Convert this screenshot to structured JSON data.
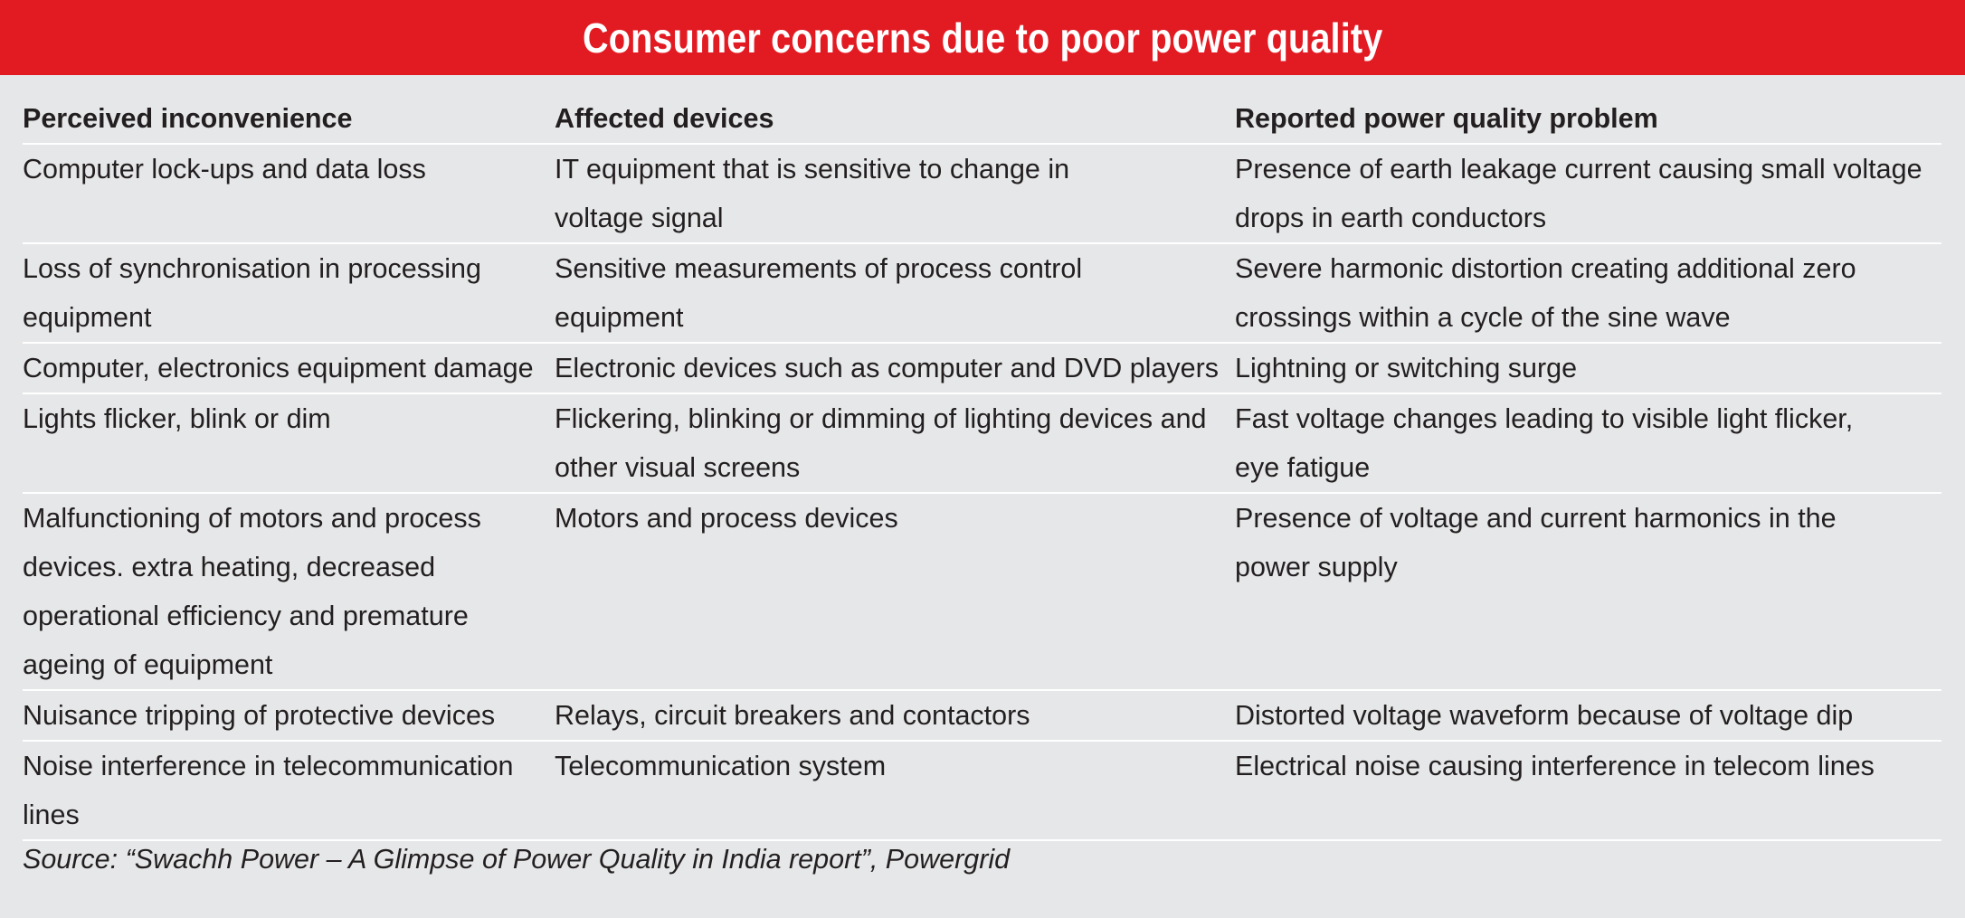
{
  "title": "Consumer concerns due to poor power quality",
  "columns": [
    "Perceived inconvenience",
    "Affected devices",
    "Reported power quality problem"
  ],
  "rows": [
    {
      "inconvenience": "Computer lock-ups and data loss",
      "devices": "IT equipment that is sensitive to change in voltage signal",
      "problem": "Presence of earth leakage current causing small voltage drops in earth conductors"
    },
    {
      "inconvenience": "Loss of synchronisation in processing equipment",
      "devices": "Sensitive measurements of process control equipment",
      "problem": "Severe harmonic distortion creating additional zero crossings within a cycle of the sine wave"
    },
    {
      "inconvenience": "Computer, electronics equipment damage",
      "devices": "Electronic devices such as computer and DVD players",
      "problem": "Lightning or switching surge"
    },
    {
      "inconvenience": "Lights flicker, blink or dim",
      "devices": "Flickering, blinking or dimming of lighting devices and other visual screens",
      "problem": "Fast voltage changes leading to visible light flicker, eye fatigue"
    },
    {
      "inconvenience": "Malfunctioning of motors and process devices. extra heating, decreased operational efficiency and premature ageing of equipment",
      "devices": "Motors and process devices",
      "problem": "Presence of voltage and current harmonics in the power supply"
    },
    {
      "inconvenience": "Nuisance tripping of protective devices",
      "devices": "Relays, circuit breakers and contactors",
      "problem": "Distorted voltage waveform because of voltage dip"
    },
    {
      "inconvenience": "Noise interference in telecommunication lines",
      "devices": "Telecommunication system",
      "problem": "Electrical noise causing interference in telecom lines"
    }
  ],
  "source": "Source: “Swachh Power – A Glimpse of Power Quality in India report”, Powergrid",
  "colors": {
    "title_bar": "#e21b23",
    "background": "#e6e7e8",
    "text": "#231f20",
    "rule": "#ffffff"
  }
}
